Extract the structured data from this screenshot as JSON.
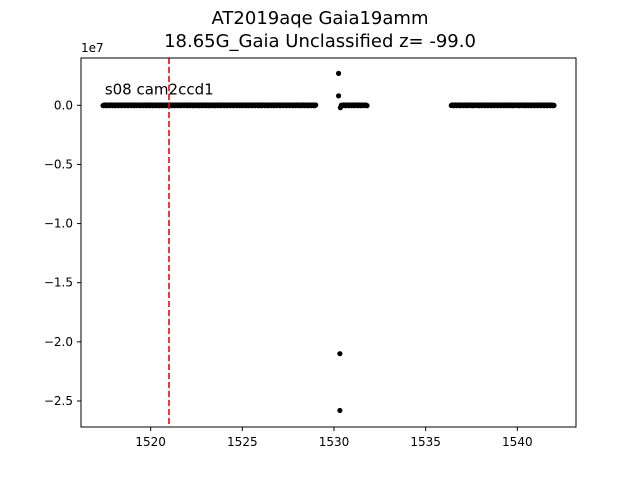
{
  "chart_data": {
    "type": "scatter",
    "title": "AT2019aqe  Gaia19amm",
    "subtitle": "18.65G_Gaia Unclassified z= -99.0",
    "xlabel": "",
    "ylabel": "",
    "offset_text": "1e7",
    "annotation": "s08 cam2ccd1",
    "xlim": [
      1516.2,
      1543.2
    ],
    "ylim": [
      -27200000.0,
      4000000.0
    ],
    "x_ticks": [
      1520,
      1525,
      1530,
      1535,
      1540
    ],
    "x_tick_labels": [
      "1520",
      "1525",
      "1530",
      "1535",
      "1540"
    ],
    "y_ticks": [
      0.0,
      -5000000.0,
      -10000000.0,
      -15000000.0,
      -20000000.0,
      -25000000.0
    ],
    "y_tick_labels": [
      "0.0",
      "−0.5",
      "−1.0",
      "−1.5",
      "−2.0",
      "−2.5"
    ],
    "vertical_line": {
      "x": 1521.0,
      "color": "#ff0000",
      "style": "dashed"
    },
    "grid": false,
    "marker_color": "#000000",
    "series": [
      {
        "segments": [
          {
            "x_start": 1517.4,
            "x_end": 1529.0,
            "y": 0.0
          },
          {
            "x_start": 1530.4,
            "x_end": 1531.8,
            "y": 0.0
          },
          {
            "x_start": 1536.4,
            "x_end": 1542.0,
            "y": 0.0
          }
        ],
        "points": [
          {
            "x": 1530.25,
            "y": 2700000.0
          },
          {
            "x": 1530.25,
            "y": 800000.0
          },
          {
            "x": 1530.32,
            "y": -21000000.0
          },
          {
            "x": 1530.32,
            "y": -25800000.0
          },
          {
            "x": 1530.35,
            "y": -200000.0
          }
        ]
      }
    ]
  }
}
